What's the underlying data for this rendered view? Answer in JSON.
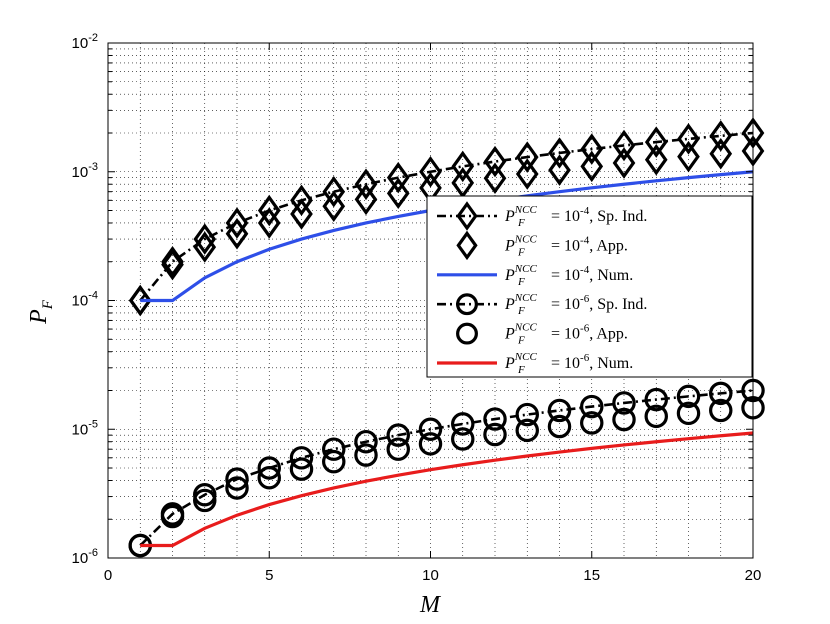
{
  "chart_data": {
    "type": "line",
    "xlabel": "M",
    "ylabel": "P_F",
    "ylabel_main": "P",
    "ylabel_sub": "F",
    "xlim": [
      0,
      20
    ],
    "ylim": [
      1e-06,
      0.01
    ],
    "yscale": "log",
    "grid": true,
    "legend_position": "center-right",
    "x_ticks": [
      0,
      5,
      10,
      15,
      20
    ],
    "x_tick_labels": [
      "0",
      "5",
      "10",
      "15",
      "20"
    ],
    "y_ticks": [
      1e-06,
      1e-05,
      0.0001,
      0.001,
      0.01
    ],
    "y_tick_labels": [
      {
        "base": "10",
        "exp": "-6"
      },
      {
        "base": "10",
        "exp": "-5"
      },
      {
        "base": "10",
        "exp": "-4"
      },
      {
        "base": "10",
        "exp": "-3"
      },
      {
        "base": "10",
        "exp": "-2"
      }
    ],
    "legend_math": {
      "base": "P",
      "sub": "F",
      "sup": "NCC",
      "equals": " = 10"
    },
    "series": [
      {
        "name": "P_F^NCC = 10^-4, Sp. Ind.",
        "legend_exp": "-4",
        "legend_suffix": ", Sp. Ind.",
        "marker": "diamond",
        "line": "dashdot",
        "color": "#000000",
        "x": [
          1,
          2,
          3,
          4,
          5,
          6,
          7,
          8,
          9,
          10,
          11,
          12,
          13,
          14,
          15,
          16,
          17,
          18,
          19,
          20
        ],
        "y": [
          0.0001,
          0.0002,
          0.0003,
          0.0004,
          0.0005,
          0.0006,
          0.0007,
          0.0008,
          0.0009,
          0.001,
          0.0011,
          0.0012,
          0.0013,
          0.0014,
          0.0015,
          0.0016,
          0.0017,
          0.0018,
          0.0019,
          0.002
        ]
      },
      {
        "name": "P_F^NCC = 10^-4, App.",
        "legend_exp": "-4",
        "legend_suffix": ", App.",
        "marker": "diamond",
        "line": "none",
        "color": "#000000",
        "x": [
          1,
          2,
          3,
          4,
          5,
          6,
          7,
          8,
          9,
          10,
          11,
          12,
          13,
          14,
          15,
          16,
          17,
          18,
          19,
          20
        ],
        "y": [
          0.0001,
          0.00019,
          0.00026,
          0.00033,
          0.0004,
          0.00047,
          0.00054,
          0.00061,
          0.00068,
          0.00075,
          0.00082,
          0.00089,
          0.00096,
          0.00103,
          0.0011,
          0.00117,
          0.00124,
          0.00131,
          0.00138,
          0.00145
        ]
      },
      {
        "name": "P_F^NCC = 10^-4, Num.",
        "legend_exp": "-4",
        "legend_suffix": ", Num.",
        "marker": "none",
        "line": "solid",
        "color": "#2e4fe8",
        "x": [
          1,
          2,
          3,
          4,
          5,
          6,
          7,
          8,
          9,
          10,
          11,
          12,
          13,
          14,
          15,
          16,
          17,
          18,
          19,
          20
        ],
        "y": [
          0.0001,
          0.0001,
          0.00015,
          0.0002,
          0.00025,
          0.0003,
          0.00035,
          0.0004,
          0.00045,
          0.0005,
          0.00055,
          0.0006,
          0.00065,
          0.0007,
          0.00075,
          0.0008,
          0.00085,
          0.0009,
          0.00095,
          0.001
        ]
      },
      {
        "name": "P_F^NCC = 10^-6, Sp. Ind.",
        "legend_exp": "-6",
        "legend_suffix": ", Sp. Ind.",
        "marker": "circle",
        "line": "dashdot",
        "color": "#000000",
        "x": [
          1,
          2,
          3,
          4,
          5,
          6,
          7,
          8,
          9,
          10,
          11,
          12,
          13,
          14,
          15,
          16,
          17,
          18,
          19,
          20
        ],
        "y": [
          1.25e-06,
          2.2e-06,
          3.1e-06,
          4.1e-06,
          5e-06,
          6e-06,
          7e-06,
          8e-06,
          9e-06,
          1e-05,
          1.1e-05,
          1.2e-05,
          1.3e-05,
          1.4e-05,
          1.5e-05,
          1.6e-05,
          1.7e-05,
          1.8e-05,
          1.9e-05,
          2e-05
        ]
      },
      {
        "name": "P_F^NCC = 10^-6, App.",
        "legend_exp": "-6",
        "legend_suffix": ", App.",
        "marker": "circle",
        "line": "none",
        "color": "#000000",
        "x": [
          1,
          2,
          3,
          4,
          5,
          6,
          7,
          8,
          9,
          10,
          11,
          12,
          13,
          14,
          15,
          16,
          17,
          18,
          19,
          20
        ],
        "y": [
          1.25e-06,
          2.1e-06,
          2.8e-06,
          3.5e-06,
          4.2e-06,
          4.9e-06,
          5.6e-06,
          6.3e-06,
          7e-06,
          7.7e-06,
          8.4e-06,
          9.1e-06,
          9.8e-06,
          1.05e-05,
          1.12e-05,
          1.19e-05,
          1.26e-05,
          1.33e-05,
          1.4e-05,
          1.47e-05
        ]
      },
      {
        "name": "P_F^NCC = 10^-6, Num.",
        "legend_exp": "-6",
        "legend_suffix": ", Num.",
        "marker": "none",
        "line": "solid",
        "color": "#e81c1c",
        "x": [
          1,
          2,
          3,
          4,
          5,
          6,
          7,
          8,
          9,
          10,
          11,
          12,
          13,
          14,
          15,
          16,
          17,
          18,
          19,
          20
        ],
        "y": [
          1.25e-06,
          1.25e-06,
          1.7e-06,
          2.15e-06,
          2.6e-06,
          3.05e-06,
          3.5e-06,
          3.95e-06,
          4.4e-06,
          4.85e-06,
          5.3e-06,
          5.75e-06,
          6.2e-06,
          6.65e-06,
          7.1e-06,
          7.55e-06,
          8e-06,
          8.45e-06,
          8.9e-06,
          9.35e-06
        ]
      }
    ]
  }
}
